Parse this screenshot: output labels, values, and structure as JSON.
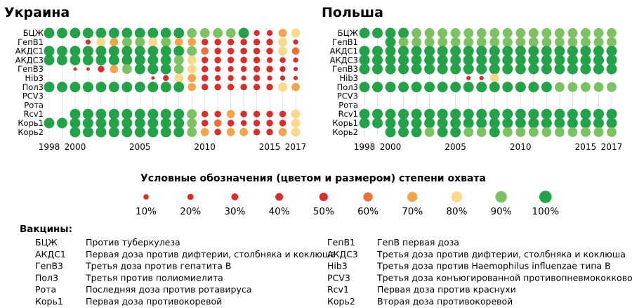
{
  "colors": {
    "c10": "#d7302c",
    "c20": "#d7302c",
    "c30": "#d7302c",
    "c40": "#d7302c",
    "c50": "#d7302c",
    "c60": "#ee6f3a",
    "c70": "#f4a54a",
    "c80": "#fbd98a",
    "c90": "#7cc263",
    "c100": "#24a24a",
    "grid": "#d8d8d8"
  },
  "legend": {
    "title": "Условные обозначения (цветом и размером) степени охвата",
    "levels": [
      "10%",
      "20%",
      "30%",
      "40%",
      "50%",
      "60%",
      "70%",
      "80%",
      "90%",
      "100%"
    ]
  },
  "vaccines_heading": "Вакцины:",
  "vaccines": [
    {
      "abbr": "БЦЖ",
      "desc": "Против туберкулеза"
    },
    {
      "abbr": "АКДС1",
      "desc": "Первая доза против дифтерии, столбняка и коклюша"
    },
    {
      "abbr": "ГепВ3",
      "desc": "Третья доза против гепатита В"
    },
    {
      "abbr": "Пол3",
      "desc": "Третья против полиомиелита"
    },
    {
      "abbr": "Рота",
      "desc": "Последняя доза против ротавируса"
    },
    {
      "abbr": "Корь1",
      "desc": "Первая доза противокоревой"
    },
    {
      "abbr": "ГепВ1",
      "desc": "ГепВ первая доза"
    },
    {
      "abbr": "АКДС3",
      "desc": "Третья доза против дифтерии, столбняка и коклюша"
    },
    {
      "abbr": "Hib3",
      "desc": "Третья доза против Haemophilus influenzae типа В"
    },
    {
      "abbr": "PCV3",
      "desc": "Третья доза конъюгированной противопневмококковой"
    },
    {
      "abbr": "Rcv1",
      "desc": "Первая доза против краснухи"
    },
    {
      "abbr": "Корь2",
      "desc": "Вторая доза противокоревой"
    }
  ],
  "chart_data": [
    {
      "type": "scatter",
      "title": "Украина",
      "x": [
        1998,
        1999,
        2000,
        2001,
        2002,
        2003,
        2004,
        2005,
        2006,
        2007,
        2008,
        2009,
        2010,
        2011,
        2012,
        2013,
        2014,
        2015,
        2016,
        2017
      ],
      "x_ticks": [
        "1998",
        "2000",
        "2005",
        "2010",
        "2015",
        "2017"
      ],
      "rows": [
        "БЦЖ",
        "ГепВ1",
        "АКДС1",
        "АКДС3",
        "ГепВ3",
        "Hib3",
        "Пол3",
        "PCV3",
        "Рота",
        "Rcv1",
        "Корь1",
        "Корь2"
      ],
      "values": [
        [
          100,
          100,
          100,
          100,
          100,
          100,
          100,
          100,
          100,
          100,
          100,
          90,
          90,
          90,
          90,
          100,
          40,
          40,
          70,
          80
        ],
        [
          null,
          null,
          null,
          30,
          80,
          70,
          90,
          90,
          80,
          90,
          70,
          70,
          50,
          50,
          50,
          50,
          50,
          50,
          80,
          30
        ],
        [
          100,
          100,
          100,
          100,
          100,
          100,
          100,
          100,
          100,
          100,
          100,
          90,
          60,
          50,
          50,
          50,
          50,
          50,
          80,
          60
        ],
        [
          100,
          100,
          100,
          100,
          100,
          100,
          100,
          100,
          100,
          100,
          90,
          80,
          50,
          50,
          50,
          50,
          50,
          40,
          40,
          30
        ],
        [
          null,
          null,
          10,
          10,
          50,
          70,
          90,
          100,
          100,
          100,
          90,
          80,
          50,
          40,
          40,
          40,
          50,
          50,
          40,
          20
        ],
        [
          null,
          null,
          null,
          null,
          null,
          null,
          null,
          null,
          10,
          40,
          80,
          70,
          50,
          40,
          40,
          30,
          50,
          30,
          30,
          20
        ],
        [
          100,
          100,
          100,
          100,
          100,
          100,
          100,
          100,
          100,
          100,
          100,
          70,
          50,
          50,
          50,
          50,
          50,
          50,
          80,
          70
        ],
        [
          null,
          null,
          null,
          null,
          null,
          null,
          null,
          null,
          null,
          null,
          null,
          null,
          null,
          null,
          null,
          null,
          null,
          null,
          null,
          null
        ],
        [
          null,
          null,
          null,
          null,
          null,
          null,
          null,
          null,
          null,
          null,
          null,
          null,
          null,
          null,
          null,
          null,
          null,
          null,
          null,
          null
        ],
        [
          null,
          null,
          100,
          100,
          100,
          100,
          100,
          100,
          100,
          100,
          100,
          90,
          50,
          50,
          70,
          50,
          50,
          50,
          50,
          80
        ],
        [
          100,
          100,
          100,
          100,
          100,
          100,
          100,
          100,
          100,
          100,
          100,
          90,
          50,
          60,
          50,
          40,
          50,
          50,
          50,
          80
        ],
        [
          null,
          null,
          100,
          100,
          100,
          100,
          100,
          100,
          100,
          100,
          100,
          90,
          70,
          50,
          70,
          70,
          50,
          50,
          70,
          80
        ]
      ]
    },
    {
      "type": "scatter",
      "title": "Польша",
      "x": [
        1998,
        1999,
        2000,
        2001,
        2002,
        2003,
        2004,
        2005,
        2006,
        2007,
        2008,
        2009,
        2010,
        2011,
        2012,
        2013,
        2014,
        2015,
        2016,
        2017
      ],
      "x_ticks": [
        "1998",
        "2000",
        "2005",
        "2010",
        "2015",
        "2017"
      ],
      "rows": [
        "БЦЖ",
        "ГепВ1",
        "АКДС1",
        "АКДС3",
        "ГепВ3",
        "Hib3",
        "Пол3",
        "PCV3",
        "Рота",
        "Rcv1",
        "Корь1",
        "Корь2"
      ],
      "values": [
        [
          100,
          100,
          100,
          100,
          90,
          90,
          90,
          90,
          90,
          90,
          90,
          90,
          90,
          90,
          90,
          90,
          90,
          90,
          90,
          90
        ],
        [
          null,
          null,
          100,
          90,
          90,
          90,
          90,
          90,
          90,
          90,
          90,
          90,
          90,
          90,
          90,
          90,
          90,
          90,
          90,
          90
        ],
        [
          100,
          100,
          100,
          100,
          100,
          100,
          100,
          100,
          100,
          100,
          100,
          100,
          100,
          100,
          100,
          100,
          100,
          100,
          100,
          100
        ],
        [
          100,
          100,
          100,
          100,
          100,
          100,
          100,
          100,
          100,
          100,
          100,
          100,
          100,
          100,
          100,
          100,
          100,
          100,
          100,
          100
        ],
        [
          100,
          100,
          100,
          100,
          100,
          100,
          100,
          100,
          100,
          100,
          100,
          100,
          100,
          100,
          100,
          100,
          100,
          100,
          100,
          100
        ],
        [
          null,
          null,
          null,
          null,
          null,
          null,
          null,
          null,
          20,
          20,
          80,
          null,
          null,
          null,
          null,
          null,
          null,
          null,
          null,
          null
        ],
        [
          100,
          100,
          100,
          100,
          100,
          100,
          100,
          100,
          100,
          100,
          100,
          100,
          100,
          100,
          100,
          90,
          90,
          90,
          90,
          90
        ],
        [
          null,
          null,
          null,
          null,
          null,
          null,
          null,
          null,
          null,
          null,
          null,
          null,
          null,
          null,
          null,
          null,
          null,
          null,
          null,
          null
        ],
        [
          null,
          null,
          null,
          null,
          null,
          null,
          null,
          null,
          null,
          null,
          null,
          null,
          null,
          null,
          null,
          null,
          null,
          null,
          null,
          null
        ],
        [
          100,
          100,
          100,
          100,
          100,
          100,
          100,
          100,
          100,
          100,
          100,
          100,
          100,
          100,
          100,
          100,
          100,
          100,
          100,
          100
        ],
        [
          100,
          100,
          100,
          100,
          100,
          100,
          100,
          100,
          100,
          100,
          100,
          100,
          100,
          100,
          100,
          100,
          100,
          100,
          100,
          100
        ],
        [
          null,
          null,
          100,
          100,
          100,
          90,
          100,
          100,
          90,
          90,
          100,
          90,
          90,
          90,
          90,
          90,
          90,
          90,
          90,
          90
        ]
      ]
    }
  ]
}
